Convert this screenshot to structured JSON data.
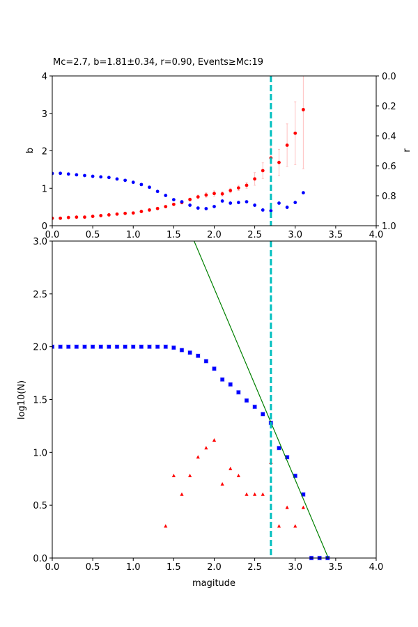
{
  "colors": {
    "b_series": "#ff0000",
    "b_error": "#ffc0c0",
    "r_series": "#0000ff",
    "mc_line": "#00bfbf",
    "cum_series": "#0000ff",
    "noncum_series": "#ff0000",
    "fit_line": "#008000"
  },
  "chart_data": [
    {
      "type": "scatter",
      "title": "Mc=2.7, b=1.81±0.34, r=0.90, Events≥Mc:19",
      "xlabel": "",
      "ylabel": "b",
      "ylabel_right": "r",
      "xlim": [
        0,
        4
      ],
      "ylim": [
        0,
        4
      ],
      "ylim_right": [
        1.0,
        0.0
      ],
      "xticks": [
        "0.0",
        "0.5",
        "1.0",
        "1.5",
        "2.0",
        "2.5",
        "3.0",
        "3.5",
        "4.0"
      ],
      "yticks": [
        "0",
        "1",
        "2",
        "3",
        "4"
      ],
      "yticks_right": [
        "0.0",
        "0.2",
        "0.4",
        "0.6",
        "0.8",
        "1.0"
      ],
      "mc": 2.7,
      "x": [
        0.0,
        0.1,
        0.2,
        0.3,
        0.4,
        0.5,
        0.6,
        0.7,
        0.8,
        0.9,
        1.0,
        1.1,
        1.2,
        1.3,
        1.4,
        1.5,
        1.6,
        1.7,
        1.8,
        1.9,
        2.0,
        2.1,
        2.2,
        2.3,
        2.4,
        2.5,
        2.6,
        2.7,
        2.8,
        2.9,
        3.0,
        3.1
      ],
      "series": [
        {
          "name": "b",
          "axis": "left",
          "values": [
            0.2,
            0.2,
            0.22,
            0.23,
            0.23,
            0.25,
            0.27,
            0.29,
            0.31,
            0.33,
            0.34,
            0.38,
            0.42,
            0.46,
            0.51,
            0.57,
            0.62,
            0.7,
            0.77,
            0.82,
            0.86,
            0.85,
            0.94,
            1.01,
            1.08,
            1.25,
            1.47,
            1.81,
            1.69,
            2.15,
            2.47,
            3.1
          ],
          "errors": [
            0.01,
            0.01,
            0.01,
            0.01,
            0.01,
            0.01,
            0.01,
            0.01,
            0.02,
            0.02,
            0.02,
            0.02,
            0.02,
            0.03,
            0.03,
            0.03,
            0.04,
            0.04,
            0.05,
            0.06,
            0.07,
            0.06,
            0.06,
            0.07,
            0.08,
            0.17,
            0.21,
            0.34,
            0.35,
            0.57,
            0.84,
            1.58
          ]
        },
        {
          "name": "r",
          "axis": "right",
          "values": [
            0.651,
            0.65,
            0.655,
            0.66,
            0.665,
            0.67,
            0.674,
            0.678,
            0.688,
            0.697,
            0.71,
            0.725,
            0.743,
            0.771,
            0.798,
            0.826,
            0.84,
            0.863,
            0.882,
            0.886,
            0.872,
            0.835,
            0.849,
            0.845,
            0.84,
            0.863,
            0.895,
            0.9,
            0.849,
            0.877,
            0.845,
            0.78
          ]
        }
      ]
    },
    {
      "type": "scatter",
      "title": "",
      "xlabel": "magitude",
      "ylabel": "log10(N)",
      "xlim": [
        0,
        4
      ],
      "ylim": [
        0,
        3
      ],
      "xticks": [
        "0.0",
        "0.5",
        "1.0",
        "1.5",
        "2.0",
        "2.5",
        "3.0",
        "3.5",
        "4.0"
      ],
      "yticks": [
        "0.0",
        "0.5",
        "1.0",
        "1.5",
        "2.0",
        "2.5",
        "3.0"
      ],
      "mc": 2.7,
      "fit": {
        "a": 6.17,
        "b": 1.81
      },
      "series": [
        {
          "name": "cumulative",
          "x": [
            0.0,
            0.1,
            0.2,
            0.3,
            0.4,
            0.5,
            0.6,
            0.7,
            0.8,
            0.9,
            1.0,
            1.1,
            1.2,
            1.3,
            1.4,
            1.5,
            1.6,
            1.7,
            1.8,
            1.9,
            2.0,
            2.1,
            2.2,
            2.3,
            2.4,
            2.5,
            2.6,
            2.7,
            2.8,
            2.9,
            3.0,
            3.1,
            3.2,
            3.3,
            3.4
          ],
          "values": [
            2.0,
            2.0,
            2.0,
            2.0,
            2.0,
            2.0,
            2.0,
            2.0,
            2.0,
            2.0,
            2.0,
            2.0,
            2.0,
            2.0,
            2.0,
            1.991,
            1.968,
            1.944,
            1.914,
            1.863,
            1.792,
            1.69,
            1.643,
            1.568,
            1.491,
            1.431,
            1.362,
            1.279,
            1.041,
            0.954,
            0.778,
            0.602,
            0.0,
            0.0,
            0.0
          ]
        },
        {
          "name": "non-cumulative",
          "x": [
            1.4,
            1.5,
            1.6,
            1.7,
            1.8,
            1.9,
            2.0,
            2.1,
            2.2,
            2.3,
            2.4,
            2.5,
            2.6,
            2.7,
            2.8,
            2.9,
            3.0,
            3.1
          ],
          "values": [
            0.301,
            0.778,
            0.602,
            0.778,
            0.954,
            1.041,
            1.114,
            0.699,
            0.845,
            0.778,
            0.602,
            0.602,
            0.602,
            0.903,
            0.301,
            0.477,
            0.301,
            0.477
          ]
        }
      ]
    }
  ]
}
